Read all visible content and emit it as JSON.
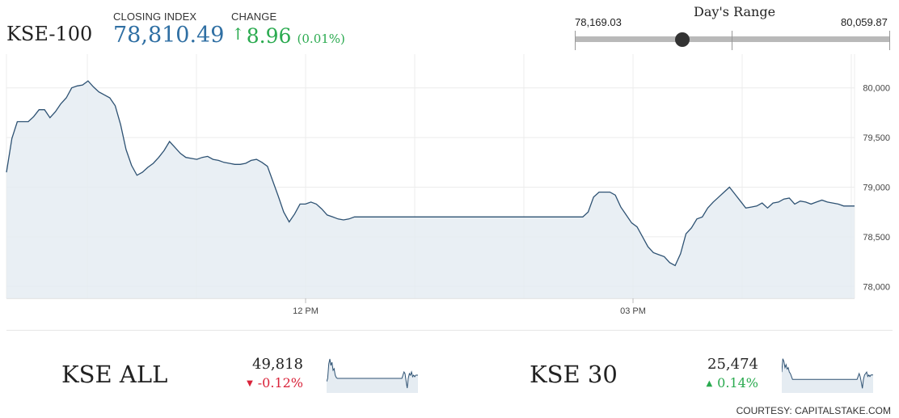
{
  "header": {
    "index_name": "KSE-100",
    "closing_label": "CLOSING INDEX",
    "closing_value": "78,810.49",
    "change_label": "CHANGE",
    "change_arrow": "↑",
    "change_value": "8.96",
    "change_pct": "(0.01%)"
  },
  "days_range": {
    "title": "Day's Range",
    "low": "78,169.03",
    "high": "80,059.87",
    "current_fraction": 0.34
  },
  "colors": {
    "line": "#2e5273",
    "fill": "#e5ecf2",
    "up": "#2aaa4f",
    "down": "#d9233a",
    "closing": "#2f6fa3"
  },
  "chart_data": {
    "type": "area",
    "yticks": [
      "80,000",
      "79,500",
      "79,000",
      "78,500",
      "78,000"
    ],
    "ytick_values": [
      80000,
      79500,
      79000,
      78500,
      78000
    ],
    "xticks": [
      "12 PM",
      "03 PM"
    ],
    "ylim": [
      77880,
      80340
    ],
    "series": [
      {
        "y": [
          79150,
          79490,
          79660,
          79660,
          79660,
          79710,
          79780,
          79780,
          79700,
          79760,
          79840,
          79900,
          80000,
          80020,
          80030,
          80070,
          80010,
          79960,
          79930,
          79900,
          79820,
          79630,
          79380,
          79220,
          79120,
          79150,
          79200,
          79240,
          79300,
          79370,
          79460,
          79400,
          79340,
          79300,
          79290,
          79280,
          79300,
          79310,
          79280,
          79270,
          79250,
          79240,
          79230,
          79230,
          79240,
          79270,
          79280,
          79250,
          79210,
          79060,
          78910,
          78750,
          78650,
          78730,
          78830,
          78830,
          78850,
          78830,
          78780,
          78720,
          78700,
          78680,
          78670,
          78680,
          78700,
          78700,
          78700,
          78700,
          78700,
          78700,
          78700,
          78700,
          78700,
          78700,
          78700,
          78700,
          78700,
          78700,
          78700,
          78700,
          78700,
          78700,
          78700,
          78700,
          78700,
          78700,
          78700,
          78700,
          78700,
          78700,
          78700,
          78700,
          78700,
          78700,
          78700,
          78700,
          78700,
          78700,
          78700,
          78700,
          78700,
          78700,
          78700,
          78700,
          78700,
          78700,
          78700,
          78750,
          78900,
          78950,
          78950,
          78950,
          78920,
          78800,
          78720,
          78640,
          78600,
          78500,
          78400,
          78340,
          78320,
          78300,
          78240,
          78210,
          78330,
          78530,
          78590,
          78680,
          78700,
          78790,
          78850,
          78900,
          78950,
          79000,
          78930,
          78860,
          78790,
          78800,
          78810,
          78840,
          78790,
          78840,
          78850,
          78880,
          78890,
          78830,
          78860,
          78850,
          78830,
          78850,
          78870,
          78850,
          78840,
          78830,
          78810,
          78810,
          78810
        ]
      }
    ]
  },
  "sub_indices": [
    {
      "name": "KSE ALL",
      "value": "49,818",
      "arrow": "▼",
      "change": "-0.12%",
      "direction": "down",
      "spark": [
        100,
        96,
        78,
        72,
        80,
        76,
        86,
        84,
        92,
        95,
        96,
        96,
        96,
        96,
        96,
        96,
        96,
        96,
        96,
        96,
        96,
        96,
        96,
        96,
        96,
        96,
        96,
        96,
        96,
        96,
        96,
        96,
        96,
        96,
        96,
        96,
        96,
        96,
        96,
        96,
        96,
        96,
        96,
        96,
        96,
        96,
        96,
        96,
        96,
        96,
        96,
        96,
        96,
        96,
        96,
        96,
        96,
        96,
        96,
        96,
        96,
        96,
        96,
        96,
        96,
        96,
        96,
        96,
        96,
        96,
        96,
        92,
        88,
        90,
        100,
        108,
        96,
        90,
        92,
        88,
        94,
        92,
        94,
        92,
        92,
        92
      ]
    },
    {
      "name": "KSE 30",
      "value": "25,474",
      "arrow": "▲",
      "change": "0.14%",
      "direction": "up",
      "spark": [
        90,
        72,
        76,
        84,
        80,
        86,
        84,
        90,
        92,
        96,
        100,
        100,
        100,
        100,
        100,
        100,
        100,
        100,
        100,
        100,
        100,
        100,
        100,
        100,
        100,
        100,
        100,
        100,
        100,
        100,
        100,
        100,
        100,
        100,
        100,
        100,
        100,
        100,
        100,
        100,
        100,
        100,
        100,
        100,
        100,
        100,
        100,
        100,
        100,
        100,
        100,
        100,
        100,
        100,
        100,
        100,
        100,
        100,
        100,
        100,
        100,
        100,
        100,
        100,
        100,
        100,
        100,
        100,
        100,
        100,
        100,
        96,
        92,
        96,
        104,
        112,
        100,
        94,
        92,
        90,
        96,
        94,
        96,
        94,
        94,
        94
      ]
    }
  ],
  "courtesy": "COURTESY: CAPITALSTAKE.COM"
}
